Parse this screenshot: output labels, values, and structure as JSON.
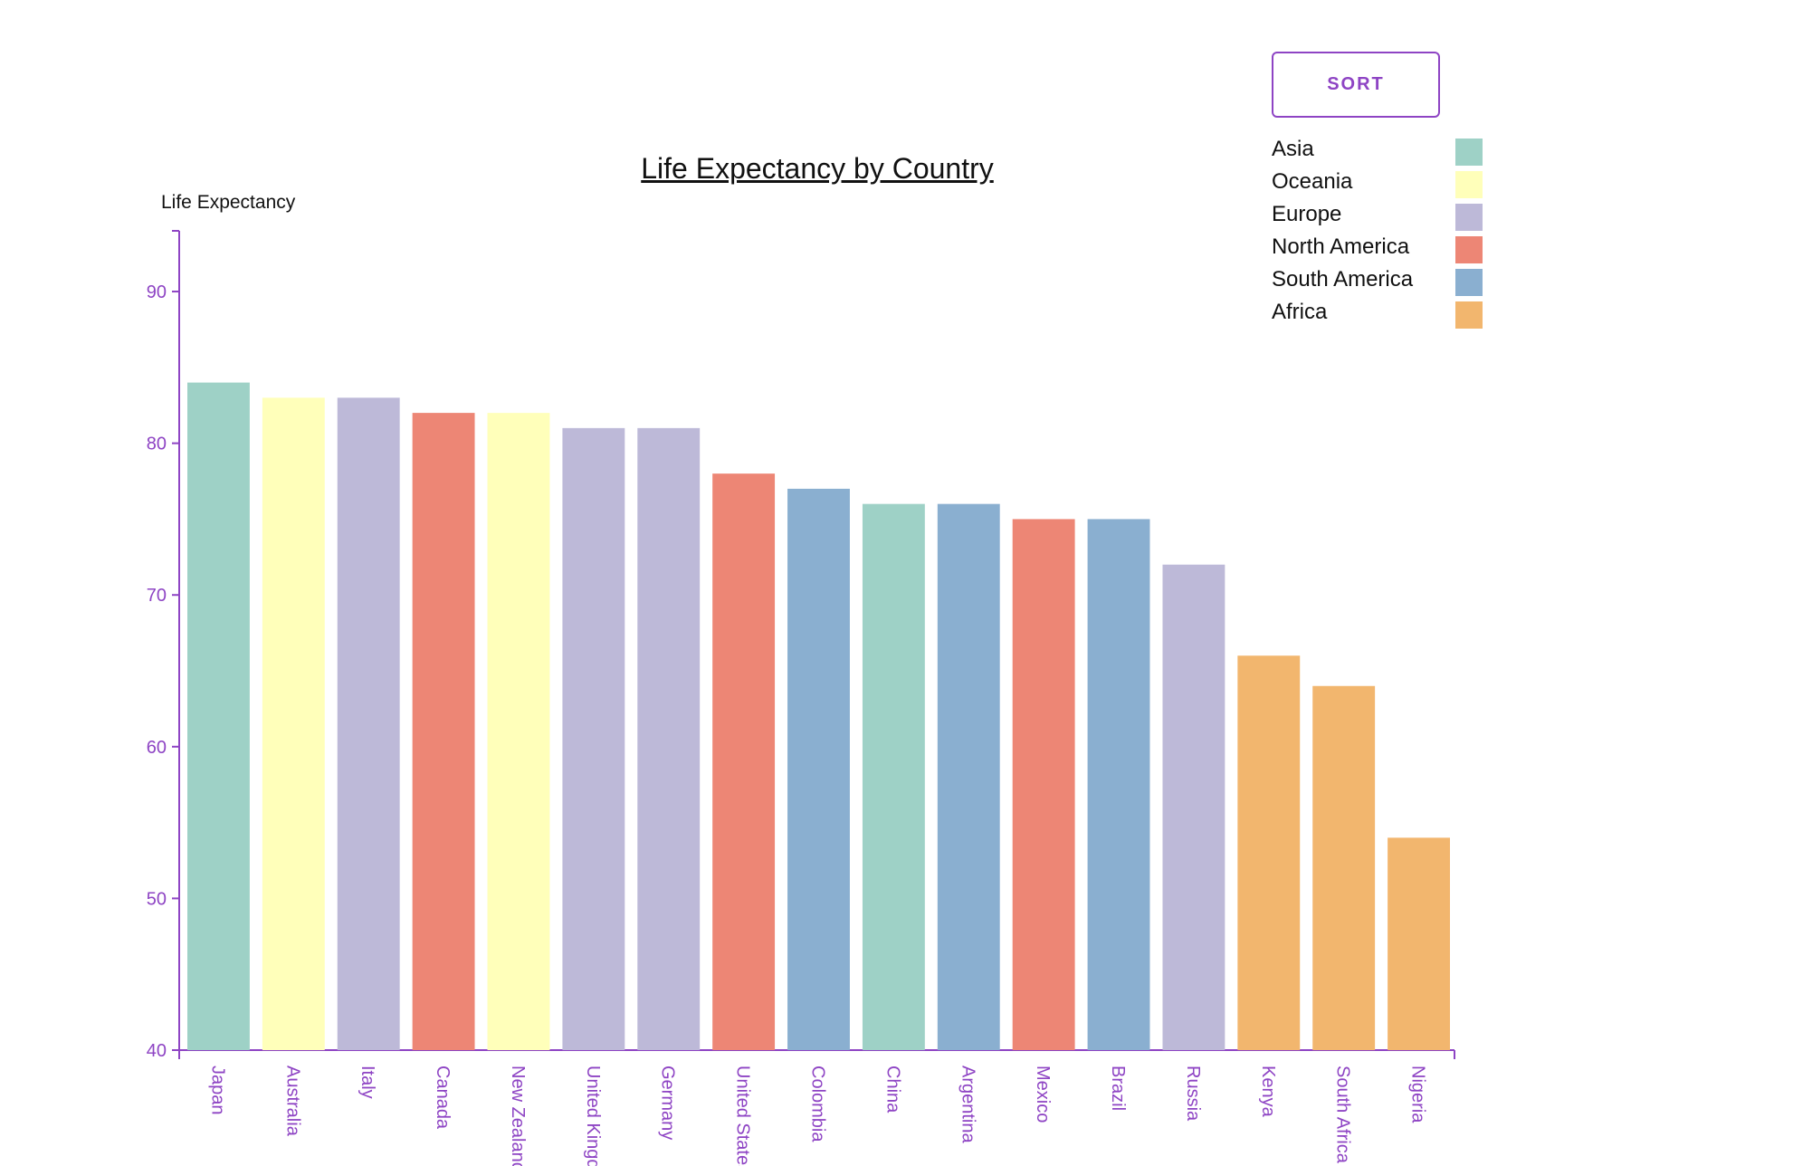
{
  "sort_button": {
    "label": "SORT"
  },
  "chart_data": {
    "type": "bar",
    "title": "Life Expectancy by Country",
    "ylabel": "Life Expectancy",
    "xlabel": "",
    "ylim": [
      40,
      94
    ],
    "yticks": [
      40,
      50,
      60,
      70,
      80,
      90
    ],
    "grid": false,
    "legend_position": "top-right",
    "axis_color": "#8e44c4",
    "categories": [
      "Japan",
      "Australia",
      "Italy",
      "Canada",
      "New Zealand",
      "United Kingdom",
      "Germany",
      "United States",
      "Colombia",
      "China",
      "Argentina",
      "Mexico",
      "Brazil",
      "Russia",
      "Kenya",
      "South Africa",
      "Nigeria"
    ],
    "values": [
      84,
      83,
      83,
      82,
      82,
      81,
      81,
      78,
      77,
      76,
      76,
      75,
      75,
      72,
      66,
      64,
      54
    ],
    "regions": [
      "Asia",
      "Oceania",
      "Europe",
      "North America",
      "Oceania",
      "Europe",
      "Europe",
      "North America",
      "South America",
      "Asia",
      "South America",
      "North America",
      "South America",
      "Europe",
      "Africa",
      "Africa",
      "Africa"
    ],
    "legend": [
      {
        "name": "Asia",
        "color": "#9ed1c6"
      },
      {
        "name": "Oceania",
        "color": "#ffffba"
      },
      {
        "name": "Europe",
        "color": "#bdb9d8"
      },
      {
        "name": "North America",
        "color": "#ed8675"
      },
      {
        "name": "South America",
        "color": "#8aafd0"
      },
      {
        "name": "Africa",
        "color": "#f2b66e"
      }
    ]
  }
}
